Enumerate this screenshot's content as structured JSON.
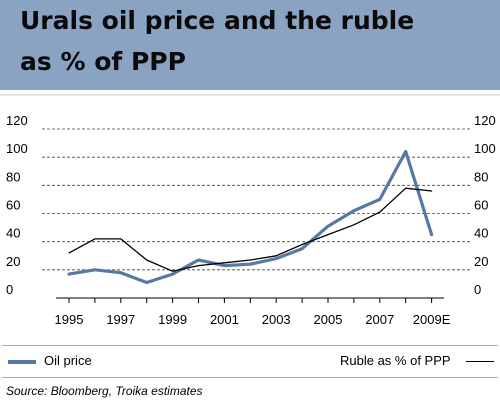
{
  "header": {
    "title_line1": "Urals oil price and the ruble",
    "title_line2": "as % of PPP"
  },
  "legend": {
    "oil_label": "Oil price",
    "ruble_label": "Ruble as % of PPP"
  },
  "source": "Source:  Bloomberg, Troika estimates",
  "colors": {
    "header_bg": "#8aa3c2",
    "oil_line": "#5878a4",
    "ruble_line": "#000000"
  },
  "chart_data": {
    "type": "line",
    "title": "Urals oil price and the ruble as % of PPP",
    "xlabel": "",
    "ylabel": "",
    "ylim": [
      0,
      120
    ],
    "y_ticks": [
      "120",
      "100",
      "80",
      "60",
      "40",
      "20",
      "0"
    ],
    "x_tick_labels": [
      "1995",
      "1997",
      "1999",
      "2001",
      "2003",
      "2005",
      "2007",
      "2009E"
    ],
    "x_tick_years": [
      1995,
      1997,
      1999,
      2001,
      2003,
      2005,
      2007,
      2009
    ],
    "grid": "horizontal dashed",
    "legend_placement": "bottom",
    "series": [
      {
        "name": "Oil price",
        "color": "#5878a4",
        "x": [
          1995,
          1996,
          1997,
          1998,
          1999,
          2000,
          2001,
          2002,
          2003,
          2004,
          2005,
          2006,
          2007,
          2008,
          2009
        ],
        "values": [
          17,
          20,
          18,
          11,
          17,
          27,
          23,
          24,
          28,
          35,
          51,
          62,
          70,
          104,
          45
        ]
      },
      {
        "name": "Ruble as % of PPP",
        "color": "#000000",
        "x": [
          1995,
          1996,
          1997,
          1998,
          1999,
          2000,
          2001,
          2002,
          2003,
          2004,
          2005,
          2006,
          2007,
          2008,
          2009
        ],
        "values": [
          32,
          42,
          42,
          27,
          19,
          23,
          25,
          27,
          30,
          38,
          45,
          52,
          61,
          78,
          76
        ]
      }
    ]
  }
}
